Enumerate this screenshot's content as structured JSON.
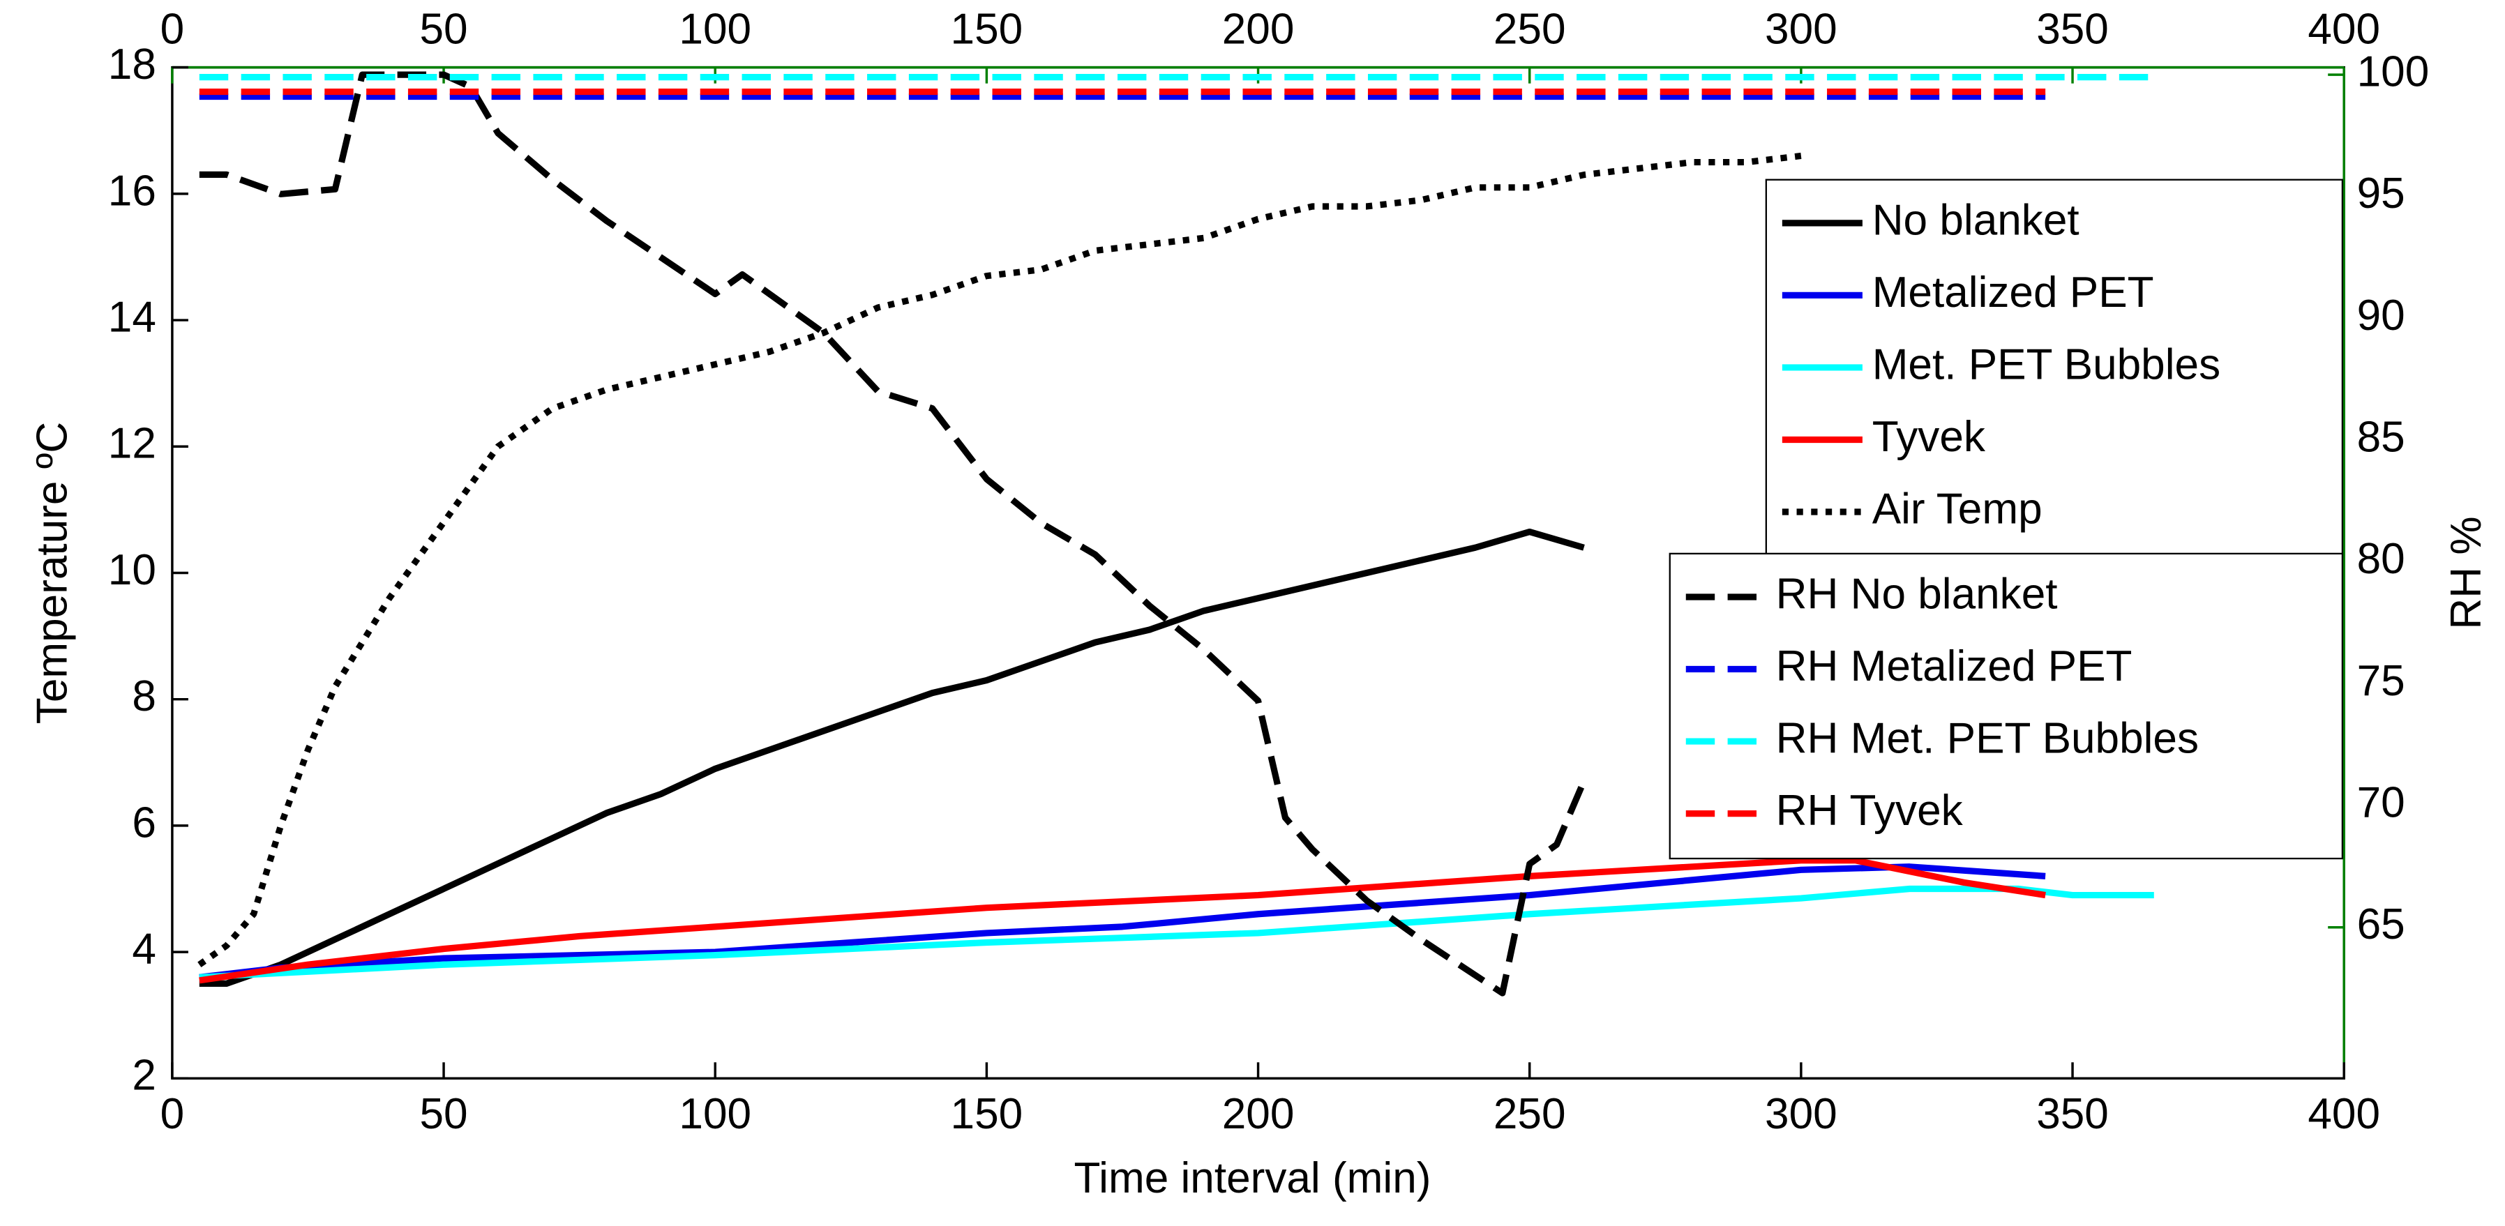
{
  "chart_data": {
    "type": "line",
    "xlabel": "Time interval (min)",
    "ylabel": "Temperature ºC",
    "y2label": "RH %",
    "xlim": [
      0,
      400
    ],
    "xticks": [
      0,
      50,
      100,
      150,
      200,
      250,
      300,
      350,
      400
    ],
    "x2ticks": [
      0,
      50,
      100,
      150,
      200,
      250,
      300,
      350,
      400
    ],
    "ylim": [
      2,
      18
    ],
    "yticks": [
      2,
      4,
      6,
      8,
      10,
      12,
      14,
      16,
      18
    ],
    "y2lim": [
      58.8,
      100.3
    ],
    "y2ticks": [
      65,
      70,
      75,
      80,
      85,
      90,
      95,
      100
    ],
    "y2color": "#008000",
    "series": [
      {
        "name": "No blanket",
        "color": "#000000",
        "style": "solid",
        "x": [
          5,
          10,
          20,
          30,
          40,
          50,
          60,
          70,
          80,
          90,
          100,
          110,
          120,
          130,
          140,
          150,
          160,
          170,
          180,
          190,
          200,
          210,
          220,
          230,
          240,
          250,
          260
        ],
        "values": [
          3.5,
          3.5,
          3.8,
          4.2,
          4.6,
          5.0,
          5.4,
          5.8,
          6.2,
          6.5,
          6.9,
          7.2,
          7.5,
          7.8,
          8.1,
          8.3,
          8.6,
          8.9,
          9.1,
          9.4,
          9.6,
          9.8,
          10.0,
          10.2,
          10.4,
          10.65,
          10.4
        ]
      },
      {
        "name": "Metalized PET",
        "color": "#0000ee",
        "style": "solid",
        "x": [
          5,
          20,
          50,
          75,
          100,
          125,
          150,
          175,
          200,
          225,
          250,
          275,
          300,
          320,
          345
        ],
        "values": [
          3.6,
          3.75,
          3.9,
          3.95,
          4.0,
          4.15,
          4.3,
          4.4,
          4.6,
          4.75,
          4.9,
          5.1,
          5.3,
          5.35,
          5.2
        ]
      },
      {
        "name": "Met. PET Bubbles",
        "color": "#00ffff",
        "style": "solid",
        "x": [
          5,
          50,
          100,
          150,
          200,
          250,
          300,
          320,
          340,
          350,
          365
        ],
        "values": [
          3.6,
          3.8,
          3.95,
          4.15,
          4.3,
          4.6,
          4.85,
          5.0,
          5.0,
          4.9,
          4.9
        ]
      },
      {
        "name": "Tyvek",
        "color": "#ff0000",
        "style": "solid",
        "x": [
          5,
          25,
          50,
          75,
          100,
          150,
          200,
          250,
          300,
          310,
          330,
          345
        ],
        "values": [
          3.55,
          3.8,
          4.05,
          4.25,
          4.4,
          4.7,
          4.9,
          5.2,
          5.45,
          5.45,
          5.1,
          4.9
        ]
      },
      {
        "name": "Air Temp",
        "color": "#000000",
        "style": "dotted",
        "x": [
          5,
          10,
          15,
          20,
          25,
          30,
          40,
          50,
          60,
          70,
          80,
          90,
          100,
          110,
          120,
          130,
          140,
          150,
          160,
          170,
          180,
          190,
          200,
          210,
          220,
          230,
          240,
          250,
          260,
          270,
          280,
          290,
          300
        ],
        "values": [
          3.8,
          4.1,
          4.6,
          6.0,
          7.2,
          8.2,
          9.6,
          10.8,
          12.0,
          12.6,
          12.9,
          13.1,
          13.3,
          13.5,
          13.8,
          14.2,
          14.4,
          14.7,
          14.8,
          15.1,
          15.2,
          15.3,
          15.6,
          15.8,
          15.8,
          15.9,
          16.1,
          16.1,
          16.3,
          16.4,
          16.5,
          16.5,
          16.6
        ]
      },
      {
        "name": "RH No blanket",
        "color": "#000000",
        "style": "dashed",
        "axis": "y2",
        "x": [
          5,
          10,
          20,
          30,
          35,
          50,
          55,
          60,
          70,
          80,
          90,
          100,
          105,
          110,
          120,
          130,
          140,
          150,
          160,
          170,
          180,
          190,
          200,
          205,
          210,
          220,
          230,
          245,
          250,
          255,
          260
        ],
        "values": [
          95.9,
          95.9,
          95.1,
          95.3,
          100,
          100,
          99.5,
          97.6,
          95.7,
          94.0,
          92.5,
          91.0,
          91.8,
          91.0,
          89.4,
          87.0,
          86.3,
          83.4,
          81.6,
          80.3,
          78.2,
          76.4,
          74.3,
          69.5,
          68.2,
          66.1,
          64.5,
          62.3,
          67.6,
          68.4,
          71.0
        ]
      },
      {
        "name": "RH Metalized PET",
        "color": "#0000ee",
        "style": "dashed",
        "axis": "y2",
        "x": [
          5,
          345
        ],
        "values": [
          99.1,
          99.1
        ]
      },
      {
        "name": "RH Met. PET Bubbles",
        "color": "#00ffff",
        "style": "dashed",
        "axis": "y2",
        "x": [
          5,
          365
        ],
        "values": [
          99.9,
          99.9
        ]
      },
      {
        "name": "RH Tyvek",
        "color": "#ff0000",
        "style": "dashed",
        "axis": "y2",
        "x": [
          5,
          345
        ],
        "values": [
          99.3,
          99.3
        ]
      }
    ]
  }
}
